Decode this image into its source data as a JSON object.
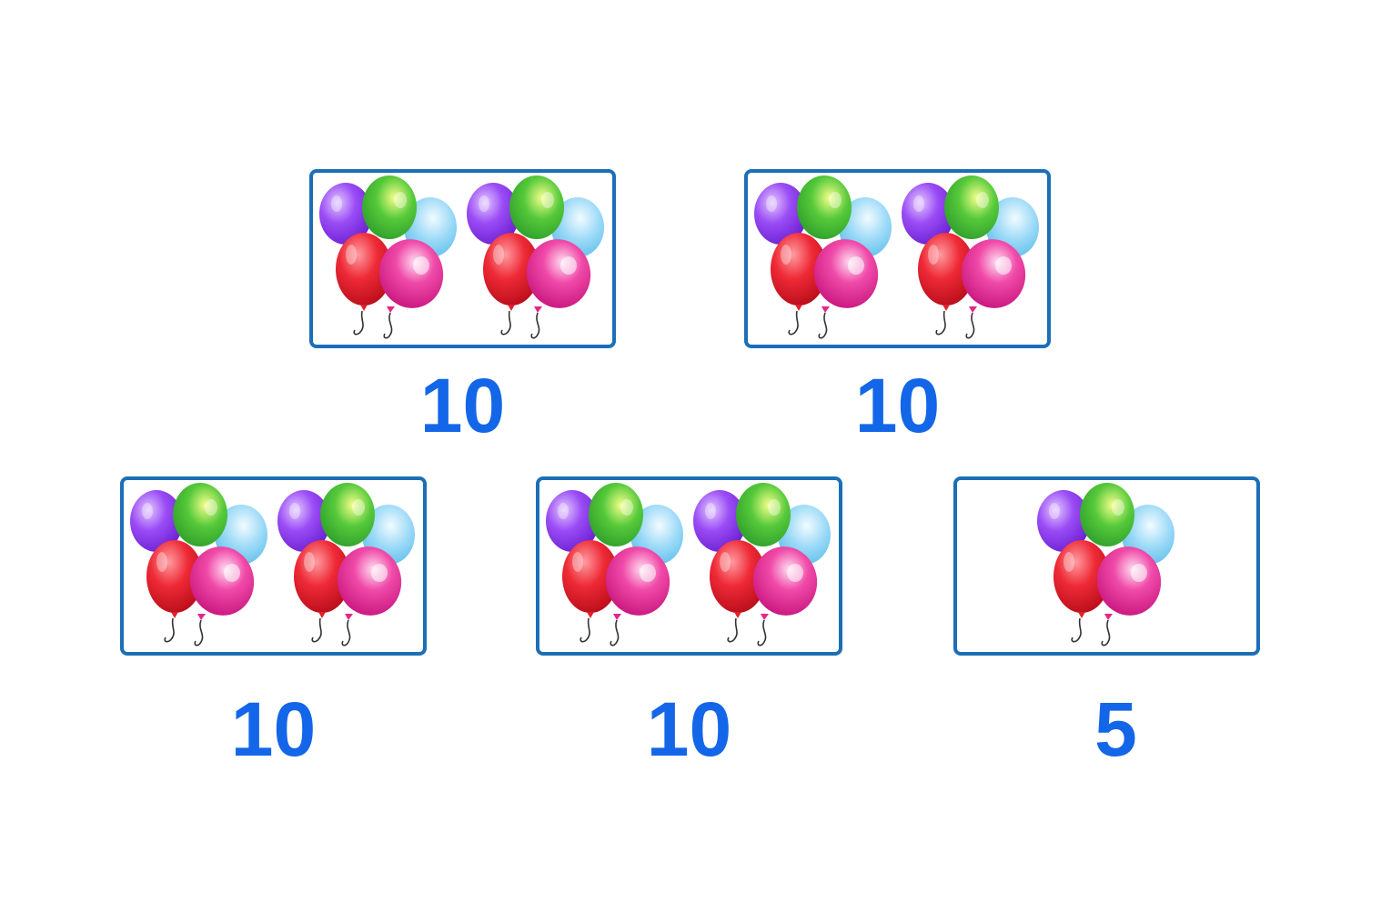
{
  "groups": [
    {
      "id": "top-left",
      "bunches": 2,
      "count_label": "10"
    },
    {
      "id": "top-right",
      "bunches": 2,
      "count_label": "10"
    },
    {
      "id": "bottom-left",
      "bunches": 2,
      "count_label": "10"
    },
    {
      "id": "bottom-middle",
      "bunches": 2,
      "count_label": "10"
    },
    {
      "id": "bottom-right",
      "bunches": 1,
      "count_label": "5"
    }
  ],
  "colors": {
    "card_border": "#1c6fb6",
    "count_text": "#1466e8",
    "balloon_purple": "#8a3df0",
    "balloon_green": "#3cc33c",
    "balloon_blue": "#7fd0f5",
    "balloon_red": "#ea2330",
    "balloon_pink": "#e81e8c"
  }
}
